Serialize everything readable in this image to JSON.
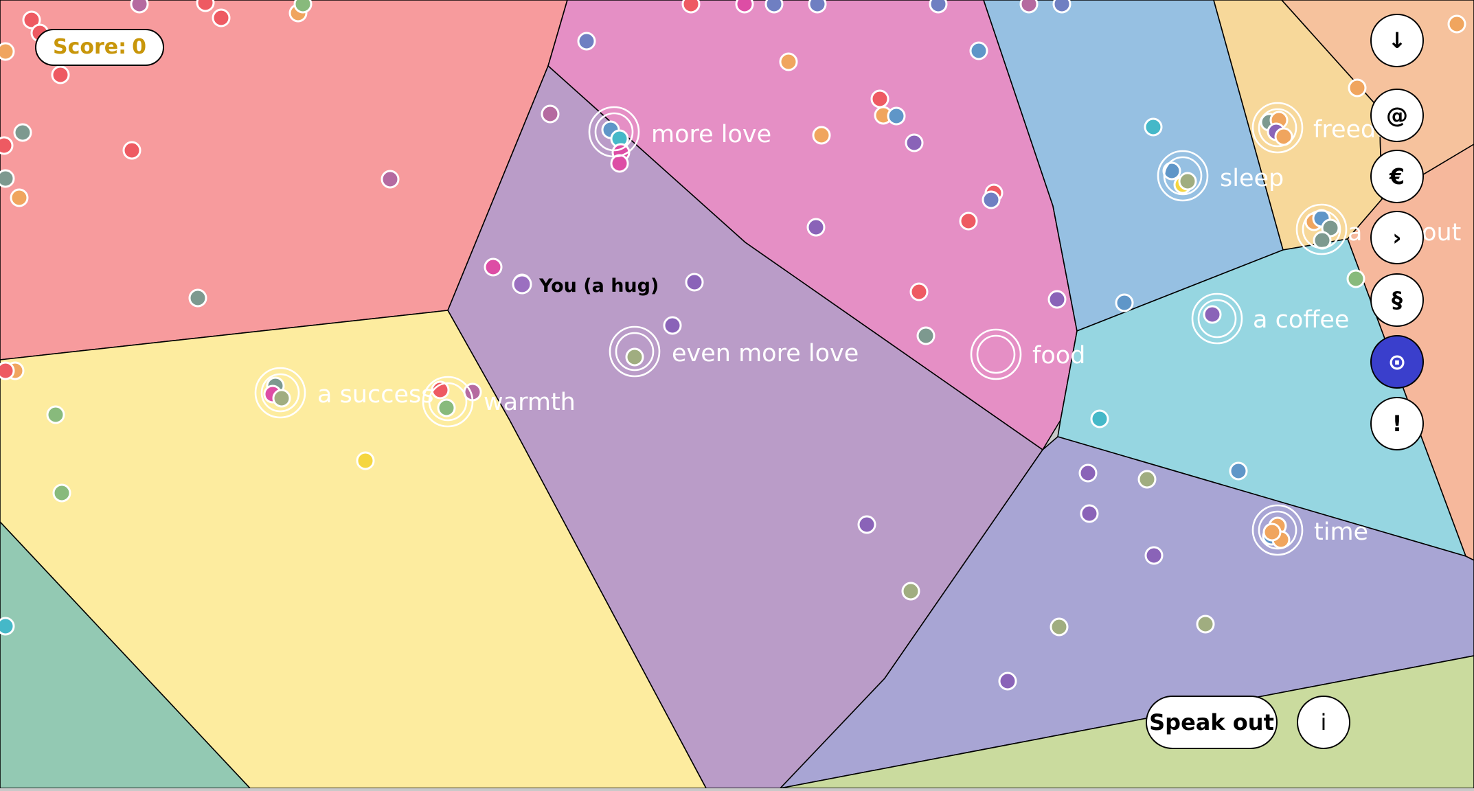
{
  "score": {
    "label": "Score:",
    "value": "0"
  },
  "player": {
    "label": "You (a hug)",
    "color": "#9b6fc0"
  },
  "regions": [
    {
      "name": "region-red",
      "color": "#f79b9d"
    },
    {
      "name": "region-pink",
      "color": "#e58fc5"
    },
    {
      "name": "region-blue",
      "color": "#96c0e2"
    },
    {
      "name": "region-wheat",
      "color": "#f7d89a"
    },
    {
      "name": "region-peach",
      "color": "#f6c29d"
    },
    {
      "name": "region-salmon",
      "color": "#f6b89c"
    },
    {
      "name": "region-purple",
      "color": "#ba9cc8"
    },
    {
      "name": "region-yellow",
      "color": "#fdec9f"
    },
    {
      "name": "region-teal",
      "color": "#93c9b3"
    },
    {
      "name": "region-cyan",
      "color": "#96d6e1"
    },
    {
      "name": "region-lavender",
      "color": "#a8a5d4"
    },
    {
      "name": "region-lime",
      "color": "#cadb9e"
    }
  ],
  "labels": [
    {
      "name": "label-more-love",
      "text": "more love"
    },
    {
      "name": "label-even-more-love",
      "text": "even more love"
    },
    {
      "name": "label-food",
      "text": "food"
    },
    {
      "name": "label-a-success",
      "text": "a success"
    },
    {
      "name": "label-warmth",
      "text": "warmth"
    },
    {
      "name": "label-sleep",
      "text": "sleep"
    },
    {
      "name": "label-freedom",
      "text": "freedom"
    },
    {
      "name": "label-a-day-out",
      "text": "a day out"
    },
    {
      "name": "label-a-coffee",
      "text": "a coffee"
    },
    {
      "name": "label-time",
      "text": "time"
    }
  ],
  "toolbar": [
    {
      "name": "download-button",
      "icon": "down-arrow-icon",
      "symbol": "↓",
      "active": false
    },
    {
      "name": "at-button",
      "icon": "at-sign-icon",
      "symbol": "@",
      "active": false
    },
    {
      "name": "euro-button",
      "icon": "euro-icon",
      "symbol": "€",
      "active": false
    },
    {
      "name": "next-button",
      "icon": "chevron-right-icon",
      "symbol": "›",
      "active": false
    },
    {
      "name": "section-button",
      "icon": "section-sign-icon",
      "symbol": "§",
      "active": false
    },
    {
      "name": "target-button",
      "icon": "target-icon",
      "symbol": "⊙",
      "active": true
    },
    {
      "name": "alert-button",
      "icon": "exclamation-icon",
      "symbol": "!",
      "active": false
    }
  ],
  "speak_out": {
    "label": "Speak out"
  },
  "info": {
    "label": "i"
  },
  "dot_colors": {
    "red": "#ee5a62",
    "pink": "#dd4da5",
    "purple": "#8a63b8",
    "blue": "#5f96c8",
    "orange": "#f0a55e",
    "yellow": "#f5d640",
    "green": "#88ba7c",
    "olive": "#a0ad80",
    "slate": "#7d998f",
    "teal": "#45b8c8",
    "mauve": "#b56aa0",
    "indigo": "#6f7fc2"
  }
}
